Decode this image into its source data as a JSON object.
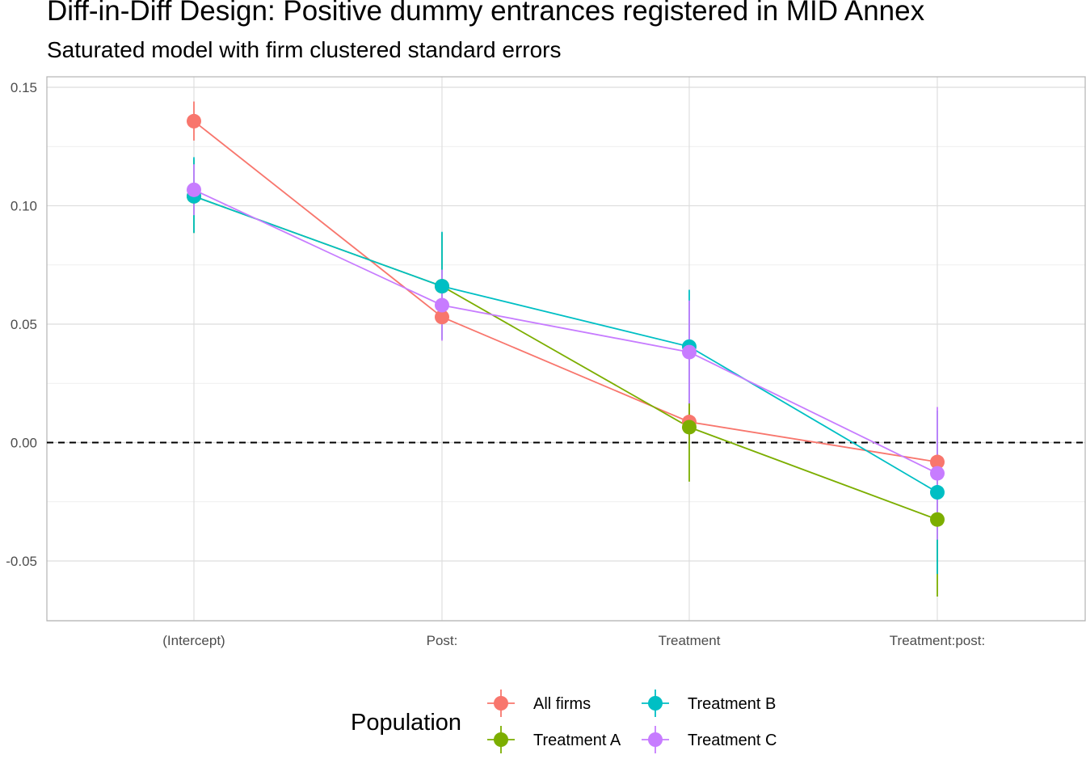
{
  "chart_data": {
    "type": "scatter",
    "title": "Diff-in-Diff Design: Positive dummy entrances registered in MID Annex",
    "subtitle": "Saturated model with firm clustered standard errors",
    "xlabel": "",
    "ylabel": "",
    "categories": [
      "(Intercept)",
      "Post:",
      "Treatment",
      "Treatment:post:"
    ],
    "ylim": [
      -0.075,
      0.155
    ],
    "yticks": [
      -0.05,
      0.0,
      0.05,
      0.1,
      0.15
    ],
    "ytick_labels": [
      "-0.05",
      "0.00",
      "0.05",
      "0.10",
      "0.15"
    ],
    "reference_line": {
      "y": 0.0,
      "style": "dashed"
    },
    "grid": true,
    "legend": {
      "title": "Population",
      "placement": "bottom"
    },
    "series": [
      {
        "name": "All firms",
        "color": "#F8766D",
        "values": [
          0.1357,
          0.053,
          0.0087,
          -0.0082
        ],
        "lower": [
          0.1275,
          0.0445,
          0.001,
          -0.016
        ],
        "upper": [
          0.144,
          0.0615,
          0.0165,
          -0.0005
        ]
      },
      {
        "name": "Treatment A",
        "color": "#7CAE00",
        "values": [
          0.104,
          0.066,
          0.0065,
          -0.0325
        ],
        "lower": [
          0.0885,
          0.0435,
          -0.0165,
          -0.065
        ],
        "upper": [
          0.1195,
          0.0885,
          0.0175,
          0.0
        ]
      },
      {
        "name": "Treatment B",
        "color": "#00BFC4",
        "values": [
          0.104,
          0.066,
          0.0405,
          -0.021
        ],
        "lower": [
          0.0885,
          0.0435,
          0.0165,
          -0.0555
        ],
        "upper": [
          0.1205,
          0.089,
          0.0645,
          0.0135
        ]
      },
      {
        "name": "Treatment C",
        "color": "#C77CFF",
        "values": [
          0.1067,
          0.058,
          0.0382,
          -0.013
        ],
        "lower": [
          0.096,
          0.043,
          0.0165,
          -0.041
        ],
        "upper": [
          0.1175,
          0.073,
          0.06,
          0.015
        ]
      }
    ]
  }
}
